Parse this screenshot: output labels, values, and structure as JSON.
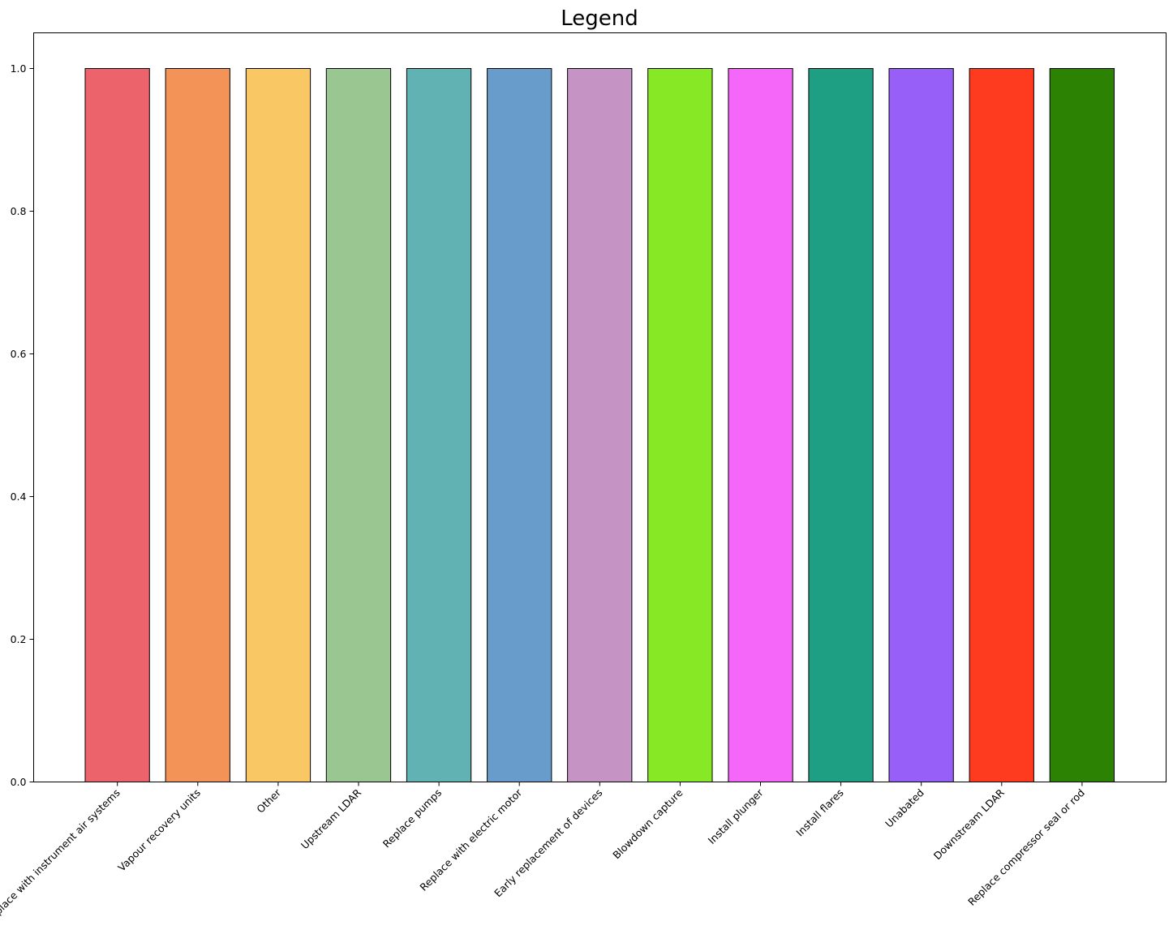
{
  "chart_data": {
    "type": "bar",
    "title": "Legend",
    "xlabel": "",
    "ylabel": "",
    "ylim": [
      0,
      1.05
    ],
    "yticks": [
      "0.0",
      "0.2",
      "0.4",
      "0.6",
      "0.8",
      "1.0"
    ],
    "ytick_values": [
      0,
      0.2,
      0.4,
      0.6,
      0.8,
      1.0
    ],
    "grid": false,
    "legend": "none",
    "categories": [
      "Replace with instrument air systems",
      "Vapour recovery units",
      "Other",
      "Upstream LDAR",
      "Replace pumps",
      "Replace with electric motor",
      "Early replacement of devices",
      "Blowdown capture",
      "Install plunger",
      "Install flares",
      "Unabated",
      "Downstream LDAR",
      "Replace compressor seal or rod"
    ],
    "values": [
      1,
      1,
      1,
      1,
      1,
      1,
      1,
      1,
      1,
      1,
      1,
      1,
      1
    ],
    "colors": [
      "#ec636b",
      "#f39358",
      "#f9c864",
      "#9ac692",
      "#61b3b3",
      "#689ccb",
      "#c594c4",
      "#87e826",
      "#f467f8",
      "#1e9e82",
      "#975ff7",
      "#fe3b1e",
      "#2c8203"
    ],
    "edge_color": "#000000"
  }
}
